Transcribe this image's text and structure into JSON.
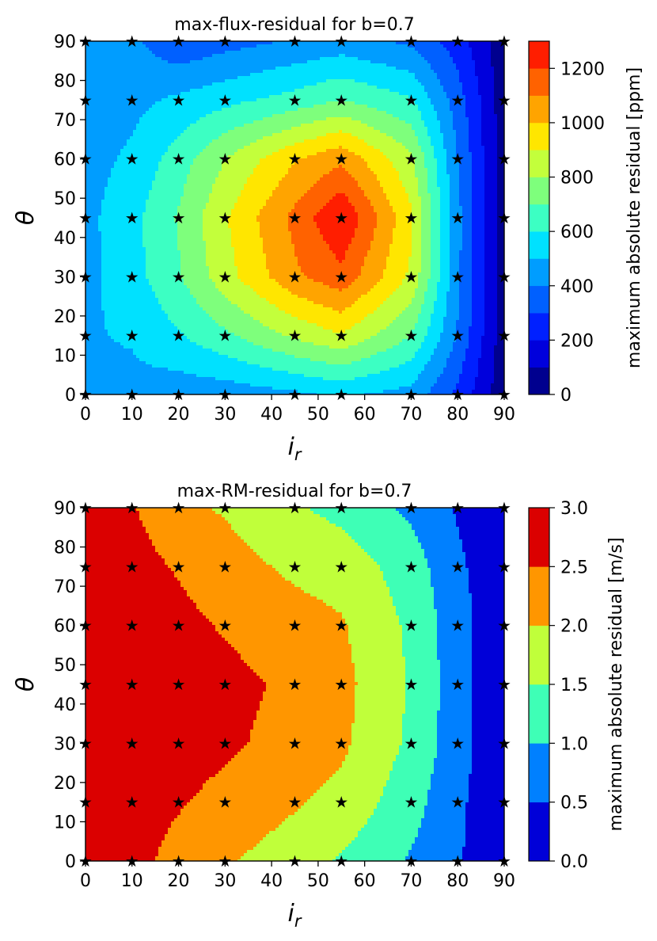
{
  "chart_data": [
    {
      "type": "contour",
      "title": "max-flux-residual for b=0.7",
      "xlabel": "i_r",
      "ylabel": "θ",
      "xlim": [
        0,
        90
      ],
      "ylim": [
        0,
        90
      ],
      "x_ticks": [
        "0",
        "10",
        "20",
        "30",
        "40",
        "50",
        "60",
        "70",
        "80",
        "90"
      ],
      "y_ticks": [
        "0",
        "10",
        "20",
        "30",
        "40",
        "50",
        "60",
        "70",
        "80",
        "90"
      ],
      "x_tick_values": [
        0,
        10,
        20,
        30,
        40,
        50,
        60,
        70,
        80,
        90
      ],
      "y_tick_values": [
        0,
        10,
        20,
        30,
        40,
        50,
        60,
        70,
        80,
        90
      ],
      "x": [
        0,
        10,
        20,
        30,
        45,
        55,
        70,
        80,
        90
      ],
      "y": [
        0,
        15,
        30,
        45,
        60,
        75,
        90
      ],
      "z": [
        [
          480,
          470,
          440,
          440,
          480,
          520,
          460,
          280,
          30
        ],
        [
          490,
          510,
          590,
          680,
          820,
          890,
          700,
          390,
          40
        ],
        [
          470,
          560,
          690,
          860,
          1080,
          1170,
          880,
          420,
          40
        ],
        [
          470,
          570,
          710,
          890,
          1130,
          1300,
          920,
          430,
          40
        ],
        [
          460,
          520,
          650,
          800,
          990,
          1080,
          820,
          400,
          40
        ],
        [
          450,
          470,
          520,
          570,
          640,
          700,
          610,
          350,
          40
        ],
        [
          440,
          420,
          320,
          360,
          410,
          440,
          380,
          250,
          30
        ]
      ],
      "levels": [
        0,
        100,
        200,
        300,
        400,
        500,
        600,
        700,
        800,
        900,
        1000,
        1100,
        1200,
        1300
      ],
      "level_colors": [
        "#00008f",
        "#0000dc",
        "#0020ff",
        "#0060ff",
        "#009dff",
        "#00e1ff",
        "#3cffc3",
        "#7eff7c",
        "#c3ff3b",
        "#ffe600",
        "#ffa400",
        "#ff6200",
        "#ff1e00",
        "#ae0000"
      ],
      "colorbar": {
        "label": "maximum absolute residual [ppm]",
        "range": [
          0,
          1300
        ],
        "ticks": [
          "0",
          "200",
          "400",
          "600",
          "800",
          "1000",
          "1200"
        ],
        "tick_values": [
          0,
          200,
          400,
          600,
          800,
          1000,
          1200
        ]
      },
      "markers": {
        "symbol": "★",
        "i_r": [
          0,
          10,
          20,
          30,
          45,
          55,
          70,
          80,
          90
        ],
        "theta": [
          0,
          15,
          30,
          45,
          60,
          75,
          90
        ]
      }
    },
    {
      "type": "contour",
      "title": "max-RM-residual for b=0.7",
      "xlabel": "i_r",
      "ylabel": "θ",
      "xlim": [
        0,
        90
      ],
      "ylim": [
        0,
        90
      ],
      "x_ticks": [
        "0",
        "10",
        "20",
        "30",
        "40",
        "50",
        "60",
        "70",
        "80",
        "90"
      ],
      "y_ticks": [
        "0",
        "10",
        "20",
        "30",
        "40",
        "50",
        "60",
        "70",
        "80",
        "90"
      ],
      "x_tick_values": [
        0,
        10,
        20,
        30,
        40,
        50,
        60,
        70,
        80,
        90
      ],
      "y_tick_values": [
        0,
        10,
        20,
        30,
        40,
        50,
        60,
        70,
        80,
        90
      ],
      "x": [
        0,
        10,
        20,
        30,
        45,
        55,
        70,
        80,
        90
      ],
      "y": [
        0,
        15,
        30,
        45,
        60,
        75,
        90
      ],
      "z": [
        [
          2.9,
          2.7,
          2.3,
          2.05,
          1.75,
          1.45,
          0.95,
          0.55,
          0.1
        ],
        [
          2.9,
          2.75,
          2.55,
          2.35,
          2.05,
          1.85,
          1.2,
          0.6,
          0.1
        ],
        [
          2.9,
          2.8,
          2.7,
          2.6,
          2.3,
          2.1,
          1.4,
          0.7,
          0.1
        ],
        [
          2.9,
          2.85,
          2.75,
          2.65,
          2.4,
          2.15,
          1.45,
          0.7,
          0.1
        ],
        [
          2.9,
          2.8,
          2.65,
          2.45,
          2.2,
          2.05,
          1.4,
          0.7,
          0.1
        ],
        [
          2.9,
          2.7,
          2.45,
          2.2,
          1.9,
          1.8,
          1.25,
          0.6,
          0.1
        ],
        [
          2.9,
          2.55,
          2.1,
          1.95,
          1.55,
          1.35,
          0.9,
          0.45,
          0.1
        ]
      ],
      "levels": [
        0,
        0.5,
        1.0,
        1.5,
        2.0,
        2.5,
        3.0
      ],
      "level_colors": [
        "#0000d8",
        "#0080ff",
        "#3effb6",
        "#c0ff3a",
        "#ff9600",
        "#db0000"
      ],
      "colorbar": {
        "label": "maximum absolute residual [m/s]",
        "range": [
          0,
          3.0
        ],
        "ticks": [
          "0.0",
          "0.5",
          "1.0",
          "1.5",
          "2.0",
          "2.5",
          "3.0"
        ],
        "tick_values": [
          0,
          0.5,
          1.0,
          1.5,
          2.0,
          2.5,
          3.0
        ]
      },
      "markers": {
        "symbol": "★",
        "i_r": [
          0,
          10,
          20,
          30,
          45,
          55,
          70,
          80,
          90
        ],
        "theta": [
          0,
          15,
          30,
          45,
          60,
          75,
          90
        ]
      }
    }
  ]
}
